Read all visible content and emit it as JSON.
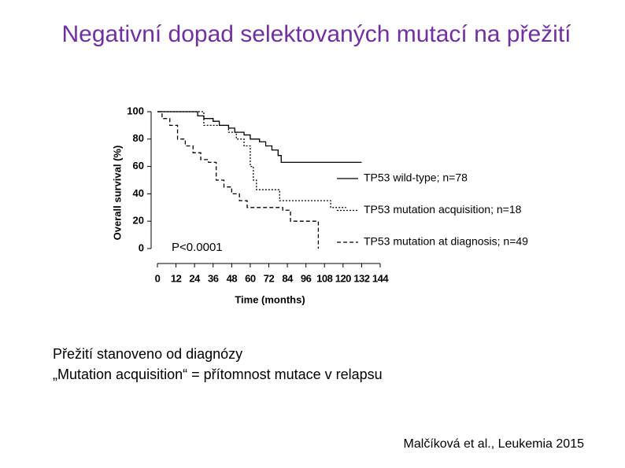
{
  "header": {
    "title": "Negativní dopad selektovaných mutací na přežití"
  },
  "chart_data": {
    "type": "line",
    "drawstyle": "steps-post",
    "ylabel": "Overall survival (%)",
    "xlabel": "Time (months)",
    "annotation": "P<0.0001",
    "xlim": [
      0,
      144
    ],
    "xticks": [
      0,
      12,
      24,
      36,
      48,
      60,
      72,
      84,
      96,
      108,
      120,
      132,
      144
    ],
    "ylim": [
      0,
      100
    ],
    "yticks": [
      0,
      20,
      40,
      60,
      80,
      100
    ],
    "legend": "right",
    "series": [
      {
        "name": "TP53 wild-type; n=78",
        "color": "#000000",
        "dash": "none",
        "x": [
          0,
          20,
          26,
          30,
          36,
          40,
          46,
          50,
          56,
          60,
          66,
          70,
          74,
          78,
          80,
          132
        ],
        "values": [
          100,
          100,
          97,
          95,
          93,
          90,
          88,
          85,
          83,
          80,
          78,
          75,
          72,
          68,
          63,
          63
        ]
      },
      {
        "name": "TP53 mutation acquisition; n=18",
        "color": "#000000",
        "dash": "2 2",
        "x": [
          0,
          24,
          30,
          46,
          51,
          56,
          60,
          62,
          64,
          79,
          112,
          122
        ],
        "values": [
          100,
          100,
          90,
          85,
          80,
          75,
          60,
          50,
          43,
          35,
          30,
          30
        ]
      },
      {
        "name": "TP53 mutation at diagnosis; n=49",
        "color": "#000000",
        "dash": "5 3",
        "x": [
          0,
          3,
          8,
          13,
          18,
          23,
          28,
          33,
          38,
          43,
          48,
          53,
          58,
          81,
          86,
          104
        ],
        "values": [
          100,
          95,
          90,
          80,
          75,
          70,
          65,
          63,
          50,
          45,
          40,
          35,
          30,
          28,
          20,
          0
        ]
      }
    ]
  },
  "notes": [
    "Přežití stanoveno od diagnózy",
    "„Mutation acquisition“ = přítomnost mutace v relapsu"
  ],
  "citation": "Malčíková et al., Leukemia 2015"
}
